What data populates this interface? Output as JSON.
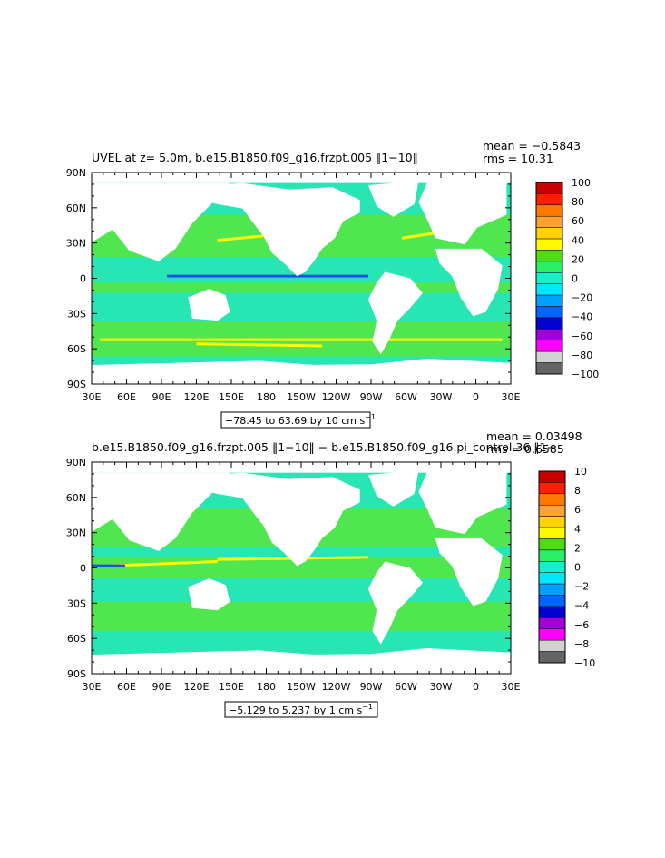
{
  "chart_data": [
    {
      "type": "heatmap",
      "title": "UVEL at z=    5.0m, b.e15.B1850.f09_g16.frzpt.005 ‖1−10‖",
      "stats": {
        "mean": "mean = −0.5843",
        "rms": "rms = 10.31"
      },
      "range_label": "−78.45 to 63.69 by 10 cm s",
      "range_sup": "−1",
      "x_ticks": [
        "30E",
        "60E",
        "90E",
        "120E",
        "150E",
        "180",
        "150W",
        "120W",
        "90W",
        "60W",
        "30W",
        "0",
        "30E"
      ],
      "y_ticks": [
        "90N",
        "60N",
        "30N",
        "0",
        "30S",
        "60S",
        "90S"
      ],
      "colorbar": {
        "labels": [
          "100",
          "80",
          "60",
          "40",
          "20",
          "0",
          "−20",
          "−40",
          "−60",
          "−80",
          "−100"
        ],
        "colors": [
          "#c80000",
          "#ff1e00",
          "#ff7800",
          "#ffa032",
          "#ffd200",
          "#fffa00",
          "#50dc14",
          "#28f064",
          "#14f0c8",
          "#00e6ff",
          "#00a0ff",
          "#0064ff",
          "#0000d2",
          "#a000dc",
          "#ff00ff",
          "#d2d2d2",
          "#646464"
        ]
      }
    },
    {
      "type": "heatmap",
      "title": "b.e15.B1850.f09_g16.frzpt.005 ‖1−10‖ − b.e15.B1850.f09_g16.pi_control.36 ‖1−",
      "stats": {
        "mean": "mean = 0.03498",
        "rms": "rms = 0.6585"
      },
      "range_label": "−5.129 to 5.237 by 1 cm s",
      "range_sup": "−1",
      "x_ticks": [
        "30E",
        "60E",
        "90E",
        "120E",
        "150E",
        "180",
        "150W",
        "120W",
        "90W",
        "60W",
        "30W",
        "0",
        "30E"
      ],
      "y_ticks": [
        "90N",
        "60N",
        "30N",
        "0",
        "30S",
        "60S",
        "90S"
      ],
      "colorbar": {
        "labels": [
          "10",
          "8",
          "6",
          "4",
          "2",
          "0",
          "−2",
          "−4",
          "−6",
          "−8",
          "−10"
        ],
        "colors": [
          "#c80000",
          "#ff1e00",
          "#ff7800",
          "#ffa032",
          "#ffd200",
          "#fffa00",
          "#50dc14",
          "#28f064",
          "#14f0c8",
          "#00e6ff",
          "#00a0ff",
          "#0064ff",
          "#0000d2",
          "#a000dc",
          "#ff00ff",
          "#d2d2d2",
          "#646464"
        ]
      }
    }
  ],
  "colors": {
    "ocean_base": "#28e6b4",
    "ocean_band": "#50e650",
    "land": "#ffffff",
    "jet_yellow": "#fffa00",
    "jet_blue": "#1e50e6"
  }
}
